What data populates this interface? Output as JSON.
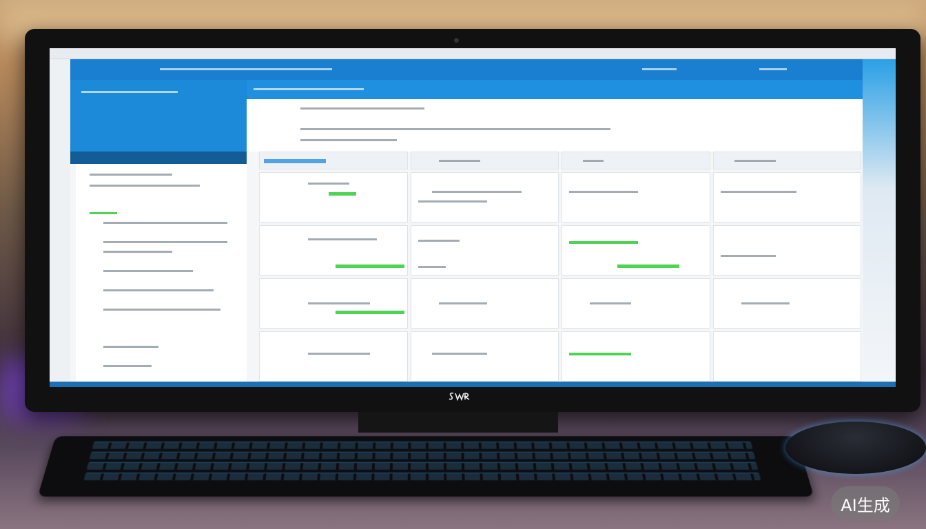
{
  "monitor": {
    "brand_logo": "SWR"
  },
  "watermark": {
    "label": "AI生成"
  },
  "colors": {
    "header_blue": "#1a7fd0",
    "accent_green": "#22c82a",
    "screen_bg": "#f4f6f8"
  }
}
